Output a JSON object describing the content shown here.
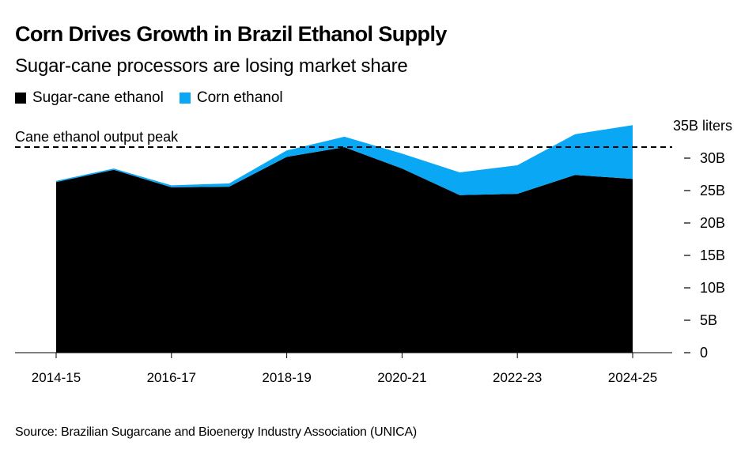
{
  "header": {
    "title": "Corn Drives Growth in Brazil Ethanol Supply",
    "subtitle": "Sugar-cane processors are losing market share"
  },
  "legend": [
    {
      "label": "Sugar-cane ethanol",
      "color": "#000000"
    },
    {
      "label": "Corn ethanol",
      "color": "#0AA7F5"
    }
  ],
  "footer": {
    "source": "Source: Brazilian Sugarcane and Bioenergy Industry Association (UNICA)"
  },
  "chart_data": {
    "type": "area",
    "stacked": true,
    "title": "Corn Drives Growth in Brazil Ethanol Supply",
    "subtitle": "Sugar-cane processors are losing market share",
    "xlabel": "",
    "ylabel": "liters",
    "x": [
      "2014-15",
      "2015-16",
      "2016-17",
      "2017-18",
      "2018-19",
      "2019-20",
      "2020-21",
      "2021-22",
      "2022-23",
      "2023-24",
      "2024-25"
    ],
    "x_tick_labels": [
      "2014-15",
      "2016-17",
      "2018-19",
      "2020-21",
      "2022-23",
      "2024-25"
    ],
    "series": [
      {
        "name": "Sugar-cane ethanol",
        "color": "#000000",
        "values": [
          26.3,
          28.2,
          25.5,
          25.6,
          30.2,
          31.7,
          28.4,
          24.3,
          24.5,
          27.4,
          26.8
        ]
      },
      {
        "name": "Corn ethanol",
        "color": "#0AA7F5",
        "values": [
          0.2,
          0.2,
          0.3,
          0.5,
          1.0,
          1.6,
          2.3,
          3.5,
          4.4,
          6.3,
          8.3
        ]
      }
    ],
    "ylim": [
      0,
      35
    ],
    "y_ticks": [
      0,
      5,
      10,
      15,
      20,
      25,
      30,
      35
    ],
    "y_tick_labels": [
      "0",
      "5B",
      "10B",
      "15B",
      "20B",
      "25B",
      "30B",
      "35B liters"
    ],
    "y_axis_side": "right",
    "grid": false,
    "legend_position": "top-left",
    "annotations": [
      {
        "type": "hline",
        "value": 31.7,
        "label": "Cane ethanol output peak",
        "style": "dashed"
      }
    ]
  }
}
